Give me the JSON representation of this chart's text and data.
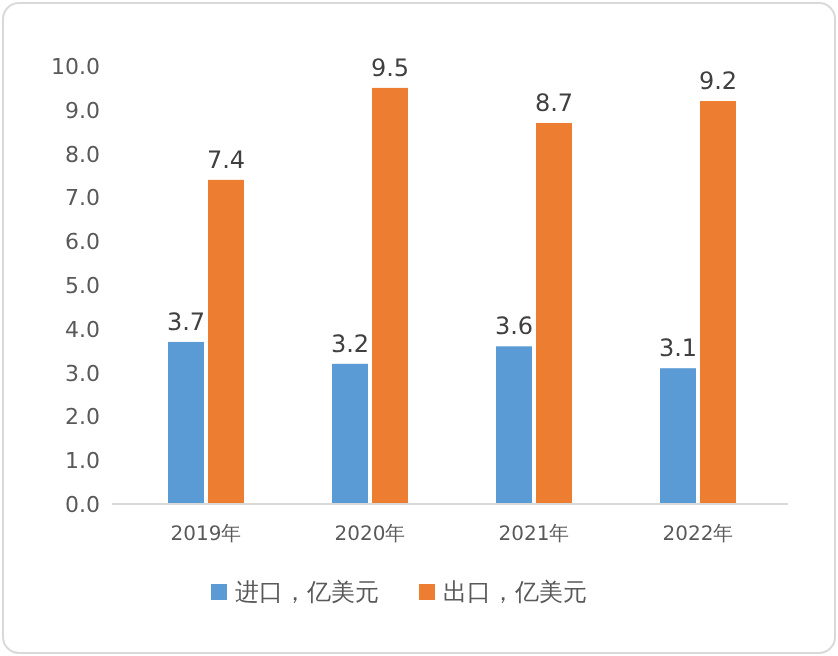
{
  "chart_data": {
    "type": "bar",
    "categories": [
      "2019年",
      "2020年",
      "2021年",
      "2022年"
    ],
    "series": [
      {
        "name": "进口，亿美元",
        "color": "#5b9bd5",
        "values": [
          3.7,
          3.2,
          3.6,
          3.1
        ]
      },
      {
        "name": "出口，亿美元",
        "color": "#ed7d31",
        "values": [
          7.4,
          9.5,
          8.7,
          9.2
        ]
      }
    ],
    "ylim": [
      0,
      10
    ],
    "yticks": [
      {
        "value": 0,
        "label": "0.0"
      },
      {
        "value": 1,
        "label": "1.0"
      },
      {
        "value": 2,
        "label": "2.0"
      },
      {
        "value": 3,
        "label": "3.0"
      },
      {
        "value": 4,
        "label": "4.0"
      },
      {
        "value": 5,
        "label": "5.0"
      },
      {
        "value": 6,
        "label": "6.0"
      },
      {
        "value": 7,
        "label": "7.0"
      },
      {
        "value": 8,
        "label": "8.0"
      },
      {
        "value": 9,
        "label": "9.0"
      },
      {
        "value": 10,
        "label": "10.0"
      }
    ],
    "data_labels": true,
    "legend": "bottom"
  }
}
